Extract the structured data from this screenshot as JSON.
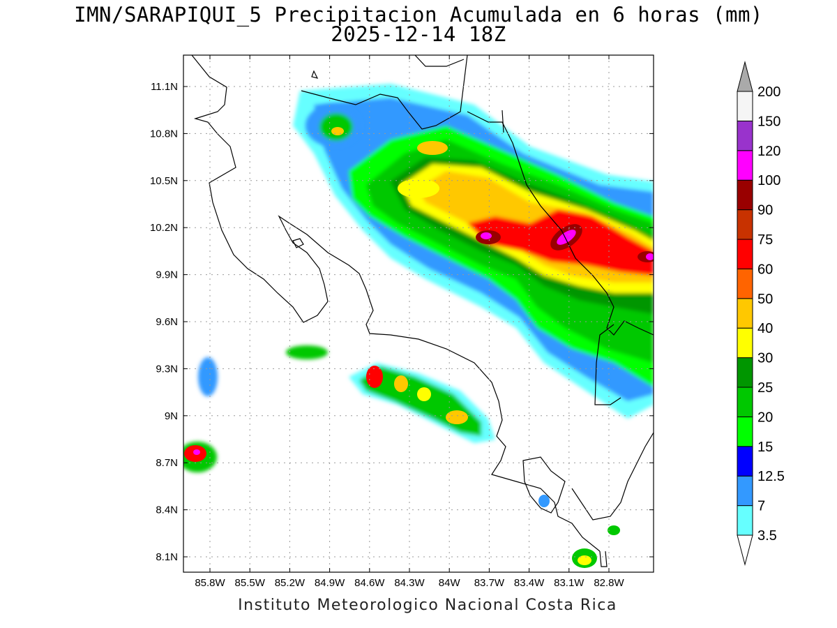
{
  "title": {
    "line1": "IMN/SARAPIQUI_5 Precipitacion Acumulada en 6 horas (mm)",
    "line2": "2025-12-14 18Z"
  },
  "credit": "Instituto Meteorologico Nacional Costa Rica",
  "map": {
    "lat_ticks": [
      "11.1N",
      "10.8N",
      "10.5N",
      "10.2N",
      "9.9N",
      "9.6N",
      "9.3N",
      "9N",
      "8.7N",
      "8.4N",
      "8.1N"
    ],
    "lon_ticks": [
      "85.8W",
      "85.5W",
      "85.2W",
      "84.9W",
      "84.6W",
      "84.3W",
      "84W",
      "83.7W",
      "83.4W",
      "83.1W",
      "82.8W"
    ],
    "grid": true
  },
  "colorbar": {
    "levels": [
      "3.5",
      "7",
      "12.5",
      "15",
      "20",
      "25",
      "30",
      "40",
      "50",
      "60",
      "75",
      "90",
      "100",
      "120",
      "150",
      "200"
    ],
    "colors": [
      "#66ffff",
      "#3399ff",
      "#0000ff",
      "#00ff00",
      "#00c800",
      "#009600",
      "#ffff00",
      "#ffc800",
      "#ff6400",
      "#ff0000",
      "#c83200",
      "#990000",
      "#ff00ff",
      "#9933cc",
      "#f5f5f5",
      "#aaaaaa"
    ]
  }
}
